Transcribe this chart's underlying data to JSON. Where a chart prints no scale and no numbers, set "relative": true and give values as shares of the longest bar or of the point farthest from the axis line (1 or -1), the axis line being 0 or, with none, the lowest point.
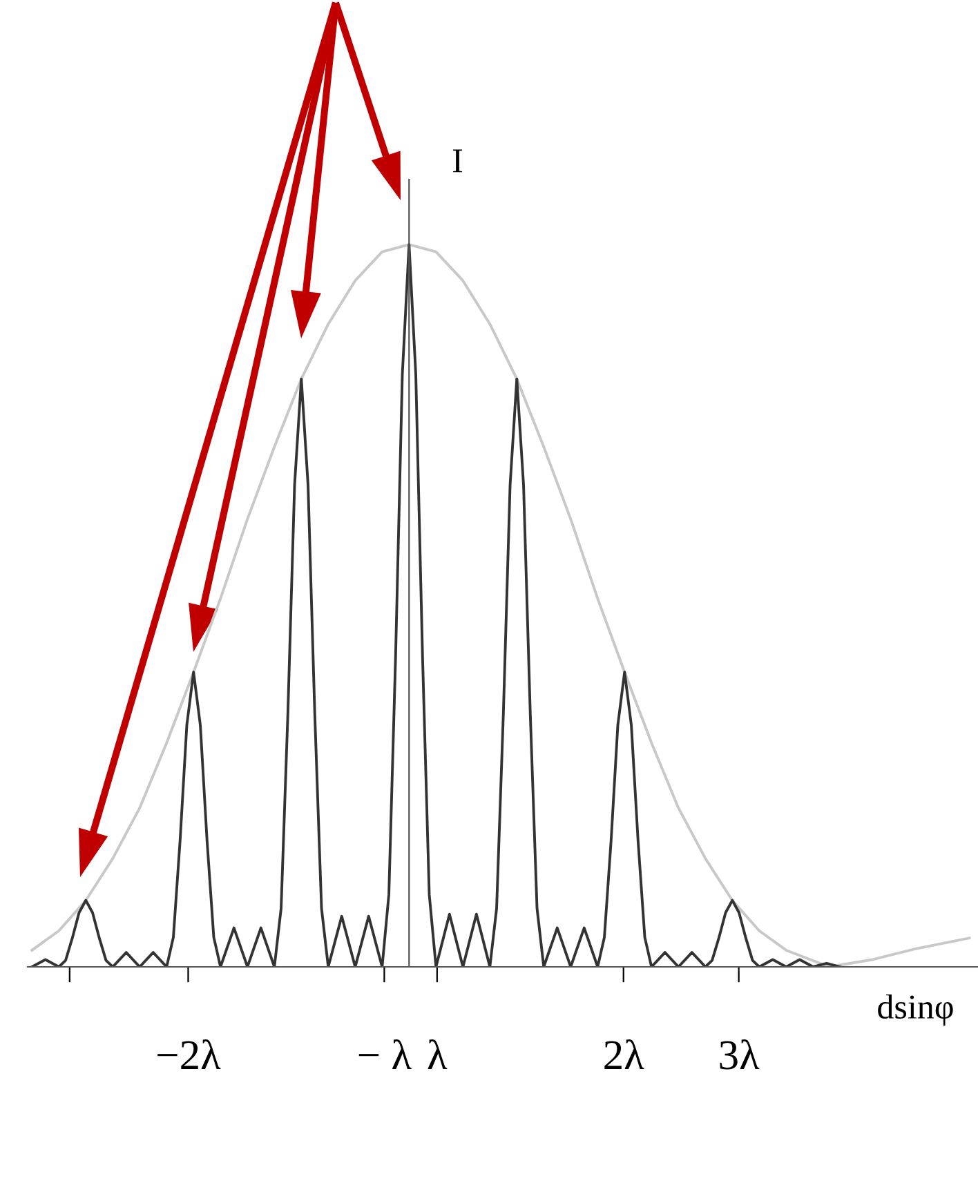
{
  "chart_data": {
    "type": "line",
    "relative": true,
    "xlabel": "dsinφ",
    "ylabel": "I",
    "xlim": [
      -3.54,
      5.28
    ],
    "xticks": [
      {
        "value": -3.15,
        "label": null
      },
      {
        "value": -2.05,
        "label": "−2λ"
      },
      {
        "value": -0.23,
        "label": "− λ"
      },
      {
        "value": 0.26,
        "label": "λ"
      },
      {
        "value": 1.99,
        "label": "2λ"
      },
      {
        "value": 3.06,
        "label": "3λ"
      }
    ],
    "grid": false,
    "legend": false,
    "series": [
      {
        "color": "#c8c8c8",
        "x": [
          -3.5,
          -3.25,
          -3,
          -2.75,
          -2.5,
          -2.25,
          -2,
          -1.75,
          -1.5,
          -1.25,
          -1,
          -0.75,
          -0.5,
          -0.25,
          0,
          0.25,
          0.5,
          0.75,
          1,
          1.25,
          1.5,
          1.75,
          2,
          2.25,
          2.5,
          2.75,
          3,
          3.25,
          3.5,
          3.9,
          4.3,
          4.7,
          5.2
        ],
        "values": [
          0.023,
          0.05,
          0.092,
          0.15,
          0.22,
          0.31,
          0.408,
          0.51,
          0.62,
          0.72,
          0.814,
          0.89,
          0.95,
          0.99,
          1,
          0.99,
          0.95,
          0.89,
          0.814,
          0.72,
          0.62,
          0.51,
          0.408,
          0.31,
          0.22,
          0.15,
          0.092,
          0.05,
          0.023,
          0,
          0.01,
          0.025,
          0.04
        ]
      },
      {
        "color": "#333333",
        "x": [
          -3.5,
          -3.375,
          -3.25,
          -3.1875,
          -3.125,
          -3.0625,
          -3,
          -2.9375,
          -2.875,
          -2.8125,
          -2.75,
          -2.625,
          -2.5,
          -2.375,
          -2.25,
          -2.1875,
          -2.125,
          -2.0625,
          -2,
          -1.9375,
          -1.875,
          -1.8125,
          -1.75,
          -1.625,
          -1.5,
          -1.375,
          -1.25,
          -1.1875,
          -1.125,
          -1.0625,
          -1,
          -0.9375,
          -0.875,
          -0.8125,
          -0.75,
          -0.625,
          -0.5,
          -0.375,
          -0.25,
          -0.1875,
          -0.125,
          -0.0625,
          0,
          0.0625,
          0.125,
          0.1875,
          0.25,
          0.375,
          0.5,
          0.625,
          0.75,
          0.8125,
          0.875,
          0.9375,
          1,
          1.0625,
          1.125,
          1.1875,
          1.25,
          1.375,
          1.5,
          1.625,
          1.75,
          1.8125,
          1.875,
          1.9375,
          2,
          2.0625,
          2.125,
          2.1875,
          2.25,
          2.375,
          2.5,
          2.625,
          2.75,
          2.8125,
          2.875,
          2.9375,
          3,
          3.0625,
          3.125,
          3.1875,
          3.25,
          3.375,
          3.5,
          3.625,
          3.75,
          3.875,
          4.0
        ],
        "values": [
          0,
          0.01,
          0,
          0.009,
          0.04,
          0.075,
          0.092,
          0.075,
          0.04,
          0.009,
          0,
          0.02,
          0,
          0.02,
          0,
          0.041,
          0.175,
          0.335,
          0.408,
          0.335,
          0.175,
          0.041,
          0,
          0.054,
          0,
          0.054,
          0,
          0.081,
          0.35,
          0.667,
          0.814,
          0.667,
          0.35,
          0.081,
          0,
          0.07,
          0,
          0.07,
          0,
          0.1,
          0.43,
          0.82,
          1,
          0.82,
          0.43,
          0.1,
          0,
          0.073,
          0,
          0.073,
          0,
          0.081,
          0.35,
          0.667,
          0.814,
          0.667,
          0.35,
          0.081,
          0,
          0.054,
          0,
          0.054,
          0,
          0.041,
          0.175,
          0.335,
          0.408,
          0.335,
          0.175,
          0.041,
          0,
          0.02,
          0,
          0.02,
          0,
          0.009,
          0.04,
          0.075,
          0.092,
          0.075,
          0.04,
          0.009,
          0,
          0.01,
          0,
          0.01,
          0,
          0.005,
          0
        ]
      }
    ]
  }
}
